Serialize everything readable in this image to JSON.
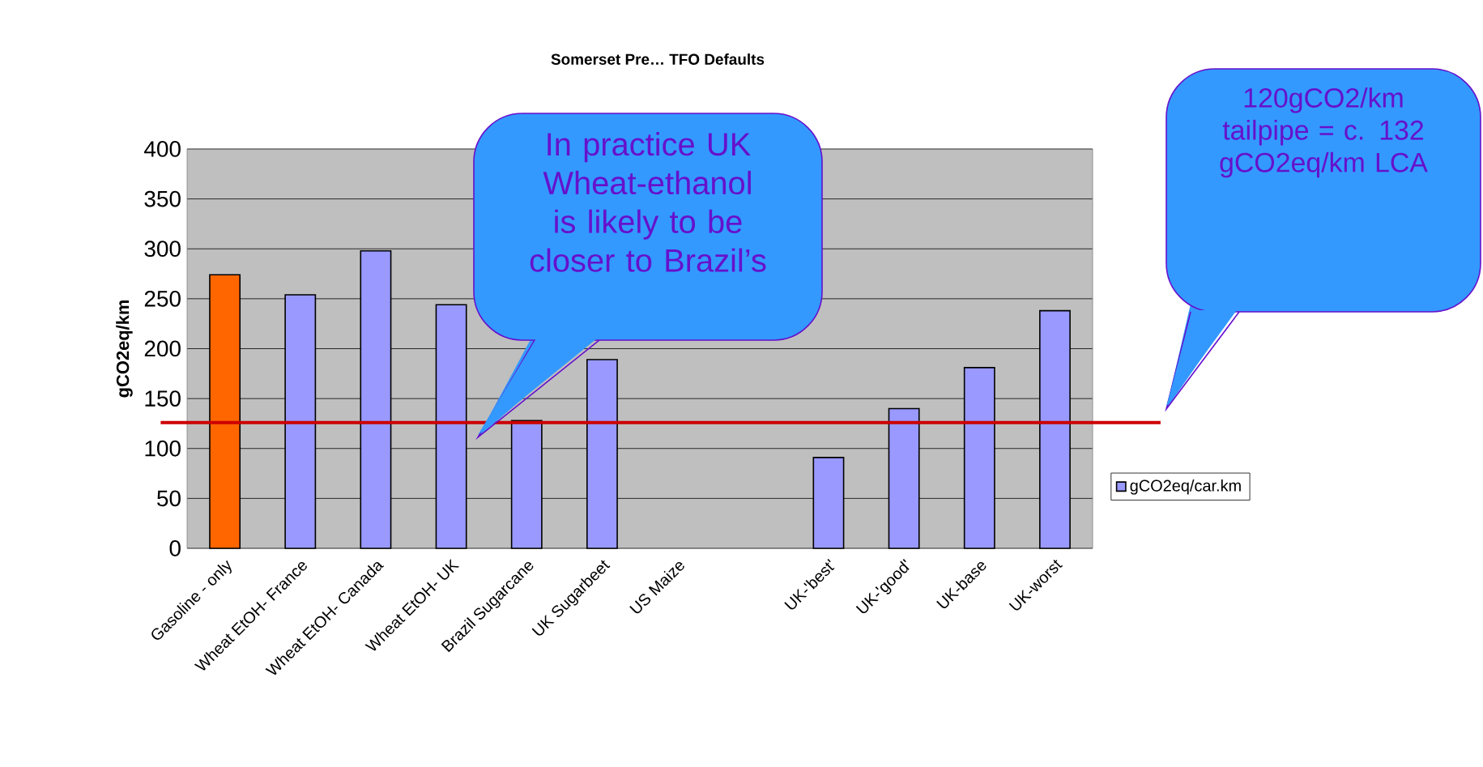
{
  "chart_data": {
    "type": "bar",
    "title": "Somerset Pre… TFO Defaults",
    "ylabel": "gCO2eq/km",
    "categories": [
      "Gasoline - only",
      "Wheat EtOH- France",
      "Wheat EtOH- Canada",
      "Wheat EtOH- UK",
      "Brazil Sugarcane",
      "UK Sugarbeet",
      "US Maize",
      null,
      "UK-'best'",
      "UK-'good'",
      "UK-base",
      "UK-worst"
    ],
    "series": [
      {
        "name": "gCO2eq/car.km",
        "color": "#9999ff",
        "colors": [
          "#ff6600",
          "#9999ff",
          "#9999ff",
          "#9999ff",
          "#9999ff",
          "#9999ff",
          "#9999ff",
          "#9999ff",
          "#9999ff",
          "#9999ff",
          "#9999ff",
          "#9999ff"
        ],
        "values": [
          274,
          254,
          298,
          244,
          128,
          189,
          null,
          null,
          91,
          140,
          181,
          238
        ]
      }
    ],
    "ylim": [
      0,
      400
    ],
    "yticks": [
      0,
      50,
      100,
      150,
      200,
      250,
      300,
      350,
      400
    ],
    "grid": "y",
    "legend": "right",
    "ref_lines": [
      {
        "axis": "y",
        "value": 126,
        "color": "#cc0000"
      }
    ],
    "annotations": [
      "In practice UK Wheat-ethanol is likely to be closer to Brazil’s",
      "120gCO2/km tailpipe = c. 132 gCO2eq/km LCA"
    ]
  }
}
